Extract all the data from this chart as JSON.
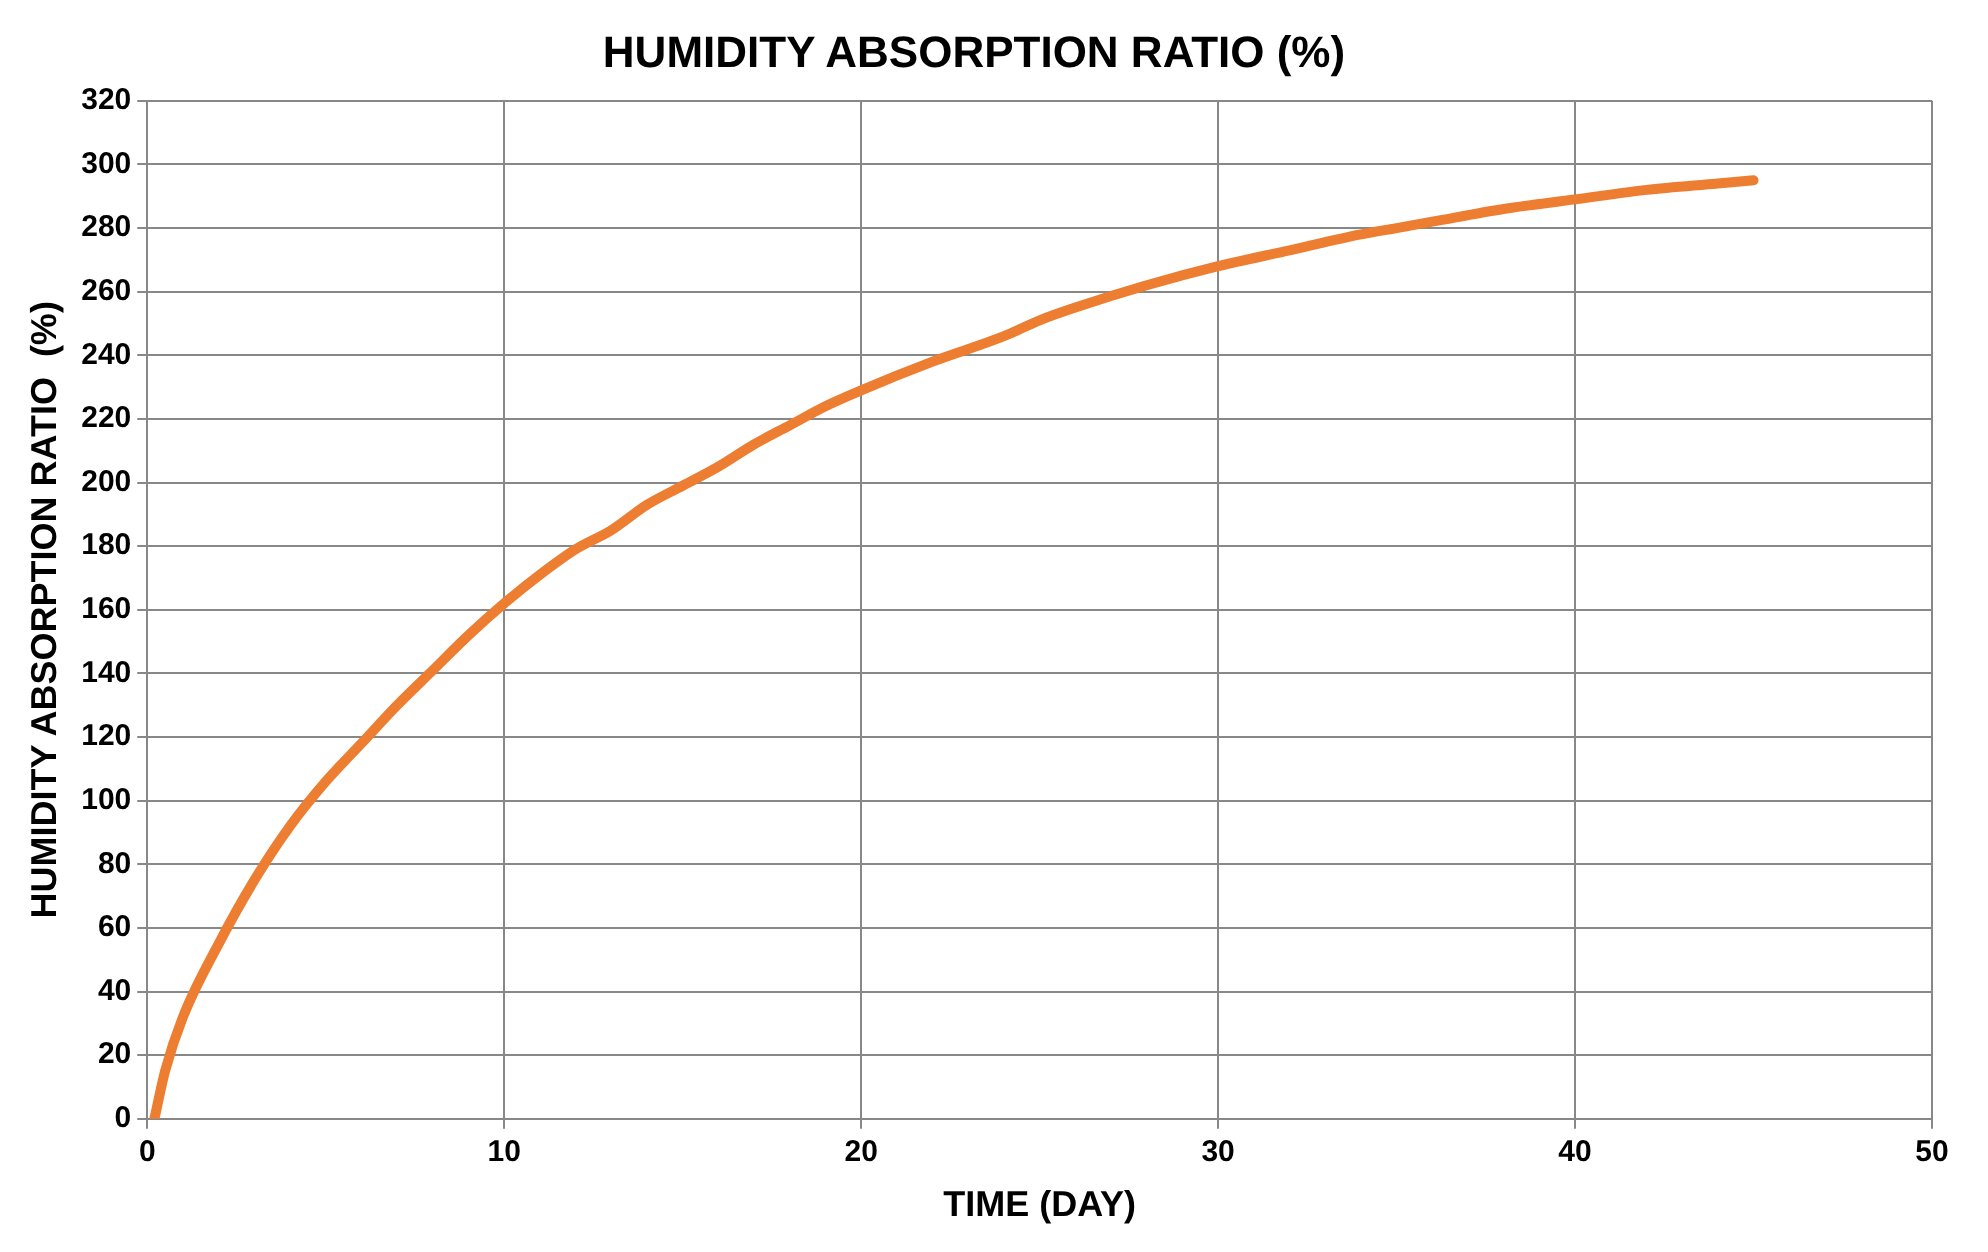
{
  "chart_data": {
    "type": "line",
    "title": "HUMIDITY ABSORPTION RATIO (%)",
    "xlabel": "TIME (DAY)",
    "ylabel": "HUMIDITY ABSORPTION RATIO  (%)",
    "x": [
      0.2,
      0.5,
      1,
      2,
      3,
      4,
      5,
      6,
      7,
      8,
      9,
      10,
      11,
      12,
      13,
      14,
      15,
      16,
      17,
      18,
      19,
      20,
      22,
      24,
      25,
      26,
      28,
      30,
      32,
      34,
      35,
      36,
      38,
      40,
      42,
      44,
      45
    ],
    "series": [
      {
        "color": "#ed7d31",
        "values": [
          0,
          15,
          32,
          55,
          75,
          92,
          106,
          118,
          130,
          141,
          152,
          162,
          171,
          179,
          185,
          193,
          199,
          205,
          212,
          218,
          224,
          229,
          238,
          246,
          251,
          255,
          262,
          268,
          273,
          278,
          280,
          282,
          286,
          289,
          292,
          294,
          295
        ]
      }
    ],
    "xlim": [
      0,
      50
    ],
    "xticks": [
      0,
      10,
      20,
      30,
      40,
      50
    ],
    "ylim": [
      0,
      320
    ],
    "yticks": [
      0,
      20,
      40,
      60,
      80,
      100,
      120,
      140,
      160,
      180,
      200,
      220,
      240,
      260,
      280,
      300,
      320
    ],
    "grid": true,
    "legend": false,
    "marker": "none",
    "line_style": "solid"
  }
}
